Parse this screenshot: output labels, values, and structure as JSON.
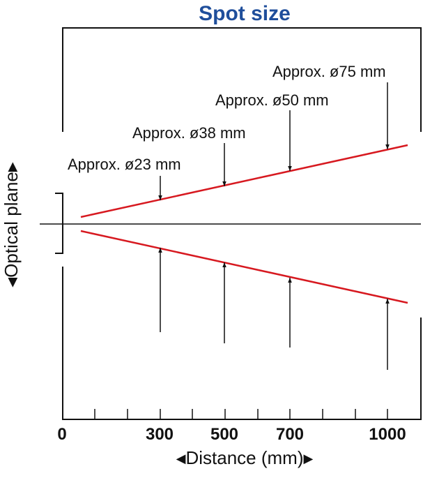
{
  "title": "Spot size",
  "colors": {
    "title": "#1f4e9b",
    "beam": "#d71920",
    "line": "#111111"
  },
  "annotations": [
    {
      "text": "Approx. ø23 mm",
      "distance": 300
    },
    {
      "text": "Approx. ø38 mm",
      "distance": 500
    },
    {
      "text": "Approx. ø50 mm",
      "distance": 700
    },
    {
      "text": "Approx. ø75 mm",
      "distance": 1000
    }
  ],
  "x_ticks": [
    "0",
    "300",
    "500",
    "700",
    "1000"
  ],
  "x_label": "Distance (mm)",
  "y_label": "Optical plane",
  "arrow_glyphs": {
    "left": "◀",
    "right": "▶"
  }
}
